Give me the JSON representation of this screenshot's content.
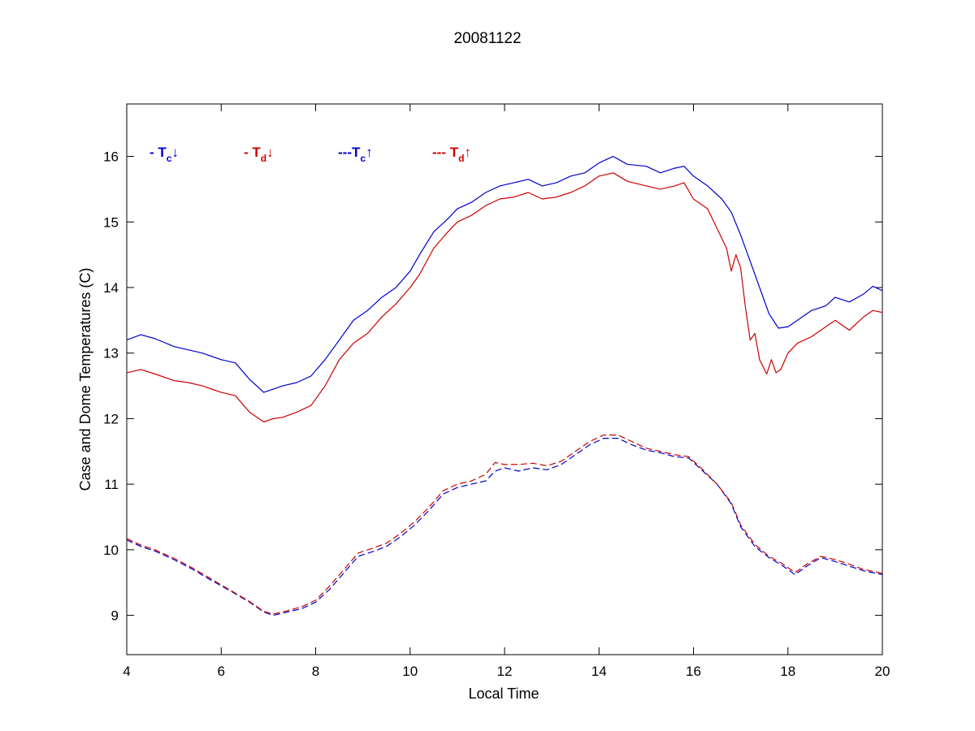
{
  "chart_data": {
    "type": "line",
    "title": "20081122",
    "xlabel": "Local Time",
    "ylabel": "Case and Dome Temperatures (C)",
    "xlim": [
      4,
      20
    ],
    "ylim": [
      8.4,
      16.8
    ],
    "xticks": [
      4,
      6,
      8,
      10,
      12,
      14,
      16,
      18,
      20
    ],
    "yticks": [
      9,
      10,
      11,
      12,
      13,
      14,
      15,
      16
    ],
    "grid": false,
    "legend_position": "top-left",
    "legend": [
      {
        "prefix": "- T",
        "sub": "c",
        "arrow": "↓",
        "color": "#0000cc"
      },
      {
        "prefix": "- T",
        "sub": "d",
        "arrow": "↓",
        "color": "#cc0000"
      },
      {
        "prefix": "---T",
        "sub": "c",
        "arrow": "↑",
        "color": "#0000cc"
      },
      {
        "prefix": "--- T",
        "sub": "d",
        "arrow": "↑",
        "color": "#cc0000"
      }
    ],
    "series": [
      {
        "color": "#0000cc",
        "dash": "none",
        "x": [
          4.0,
          4.3,
          4.6,
          5.0,
          5.3,
          5.6,
          6.0,
          6.3,
          6.6,
          6.9,
          7.1,
          7.3,
          7.6,
          7.9,
          8.2,
          8.5,
          8.8,
          9.1,
          9.4,
          9.7,
          10.0,
          10.2,
          10.5,
          10.8,
          11.0,
          11.3,
          11.6,
          11.9,
          12.2,
          12.5,
          12.8,
          13.1,
          13.4,
          13.7,
          14.0,
          14.3,
          14.6,
          15.0,
          15.3,
          15.6,
          15.8,
          16.0,
          16.3,
          16.6,
          16.8,
          17.0,
          17.2,
          17.4,
          17.6,
          17.8,
          18.0,
          18.2,
          18.5,
          18.8,
          19.0,
          19.3,
          19.6,
          19.8,
          20.0
        ],
        "y": [
          13.2,
          13.28,
          13.22,
          13.1,
          13.05,
          13.0,
          12.9,
          12.85,
          12.6,
          12.4,
          12.45,
          12.5,
          12.55,
          12.65,
          12.9,
          13.2,
          13.5,
          13.65,
          13.85,
          14.0,
          14.25,
          14.5,
          14.85,
          15.05,
          15.2,
          15.3,
          15.45,
          15.55,
          15.6,
          15.65,
          15.55,
          15.6,
          15.7,
          15.75,
          15.9,
          16.0,
          15.88,
          15.85,
          15.75,
          15.82,
          15.85,
          15.7,
          15.55,
          15.35,
          15.15,
          14.8,
          14.4,
          14.0,
          13.6,
          13.38,
          13.4,
          13.5,
          13.65,
          13.72,
          13.85,
          13.78,
          13.9,
          14.02,
          13.95
        ]
      },
      {
        "color": "#cc0000",
        "dash": "none",
        "x": [
          4.0,
          4.3,
          4.6,
          5.0,
          5.3,
          5.6,
          6.0,
          6.3,
          6.6,
          6.9,
          7.1,
          7.3,
          7.6,
          7.9,
          8.2,
          8.5,
          8.8,
          9.1,
          9.4,
          9.7,
          10.0,
          10.2,
          10.5,
          10.8,
          11.0,
          11.3,
          11.6,
          11.9,
          12.2,
          12.5,
          12.8,
          13.1,
          13.4,
          13.7,
          14.0,
          14.3,
          14.6,
          15.0,
          15.3,
          15.6,
          15.8,
          16.0,
          16.3,
          16.5,
          16.7,
          16.8,
          16.9,
          17.0,
          17.1,
          17.2,
          17.3,
          17.4,
          17.55,
          17.65,
          17.75,
          17.85,
          18.0,
          18.2,
          18.5,
          18.8,
          19.0,
          19.3,
          19.6,
          19.8,
          20.0
        ],
        "y": [
          12.7,
          12.75,
          12.68,
          12.58,
          12.55,
          12.5,
          12.4,
          12.35,
          12.1,
          11.95,
          12.0,
          12.02,
          12.1,
          12.2,
          12.5,
          12.9,
          13.15,
          13.3,
          13.55,
          13.75,
          14.0,
          14.2,
          14.6,
          14.85,
          15.0,
          15.1,
          15.25,
          15.35,
          15.38,
          15.45,
          15.35,
          15.38,
          15.45,
          15.55,
          15.7,
          15.75,
          15.62,
          15.55,
          15.5,
          15.55,
          15.6,
          15.35,
          15.2,
          14.9,
          14.6,
          14.25,
          14.5,
          14.3,
          13.7,
          13.2,
          13.3,
          12.9,
          12.68,
          12.9,
          12.7,
          12.75,
          13.0,
          13.15,
          13.25,
          13.4,
          13.5,
          13.35,
          13.55,
          13.65,
          13.62
        ]
      },
      {
        "color": "#0000cc",
        "dash": "8,4",
        "x": [
          4.0,
          4.3,
          4.6,
          5.0,
          5.4,
          5.8,
          6.2,
          6.6,
          6.9,
          7.1,
          7.4,
          7.7,
          8.0,
          8.3,
          8.6,
          8.9,
          9.2,
          9.5,
          9.8,
          10.1,
          10.4,
          10.7,
          11.0,
          11.3,
          11.6,
          11.8,
          12.0,
          12.3,
          12.6,
          12.9,
          13.2,
          13.5,
          13.8,
          14.1,
          14.4,
          14.7,
          15.0,
          15.3,
          15.6,
          15.9,
          16.2,
          16.5,
          16.8,
          17.0,
          17.3,
          17.6,
          17.9,
          18.15,
          18.4,
          18.7,
          19.0,
          19.3,
          19.6,
          19.8,
          20.0
        ],
        "y": [
          10.15,
          10.05,
          9.98,
          9.85,
          9.7,
          9.53,
          9.37,
          9.2,
          9.05,
          9.0,
          9.05,
          9.1,
          9.2,
          9.4,
          9.65,
          9.9,
          9.97,
          10.05,
          10.2,
          10.38,
          10.6,
          10.85,
          10.95,
          11.0,
          11.05,
          11.2,
          11.25,
          11.2,
          11.25,
          11.22,
          11.3,
          11.45,
          11.6,
          11.7,
          11.7,
          11.6,
          11.52,
          11.48,
          11.42,
          11.4,
          11.2,
          11.0,
          10.7,
          10.35,
          10.05,
          9.88,
          9.75,
          9.62,
          9.75,
          9.88,
          9.82,
          9.75,
          9.68,
          9.65,
          9.62
        ]
      },
      {
        "color": "#cc0000",
        "dash": "8,4",
        "x": [
          4.0,
          4.3,
          4.6,
          5.0,
          5.4,
          5.8,
          6.2,
          6.6,
          6.9,
          7.1,
          7.4,
          7.7,
          8.0,
          8.3,
          8.6,
          8.9,
          9.2,
          9.5,
          9.8,
          10.1,
          10.4,
          10.7,
          11.0,
          11.3,
          11.6,
          11.8,
          12.0,
          12.3,
          12.6,
          12.9,
          13.2,
          13.5,
          13.8,
          14.1,
          14.4,
          14.7,
          15.0,
          15.3,
          15.6,
          15.9,
          16.2,
          16.5,
          16.8,
          17.0,
          17.3,
          17.6,
          17.9,
          18.15,
          18.4,
          18.7,
          19.0,
          19.3,
          19.6,
          19.8,
          20.0
        ],
        "y": [
          10.17,
          10.07,
          10.0,
          9.87,
          9.72,
          9.55,
          9.38,
          9.21,
          9.06,
          9.02,
          9.07,
          9.13,
          9.23,
          9.45,
          9.7,
          9.95,
          10.02,
          10.1,
          10.25,
          10.43,
          10.65,
          10.9,
          11.0,
          11.05,
          11.15,
          11.33,
          11.3,
          11.3,
          11.32,
          11.28,
          11.35,
          11.5,
          11.65,
          11.75,
          11.75,
          11.65,
          11.55,
          11.5,
          11.45,
          11.42,
          11.22,
          11.0,
          10.72,
          10.38,
          10.08,
          9.9,
          9.78,
          9.65,
          9.78,
          9.9,
          9.85,
          9.78,
          9.7,
          9.67,
          9.64
        ]
      }
    ]
  }
}
